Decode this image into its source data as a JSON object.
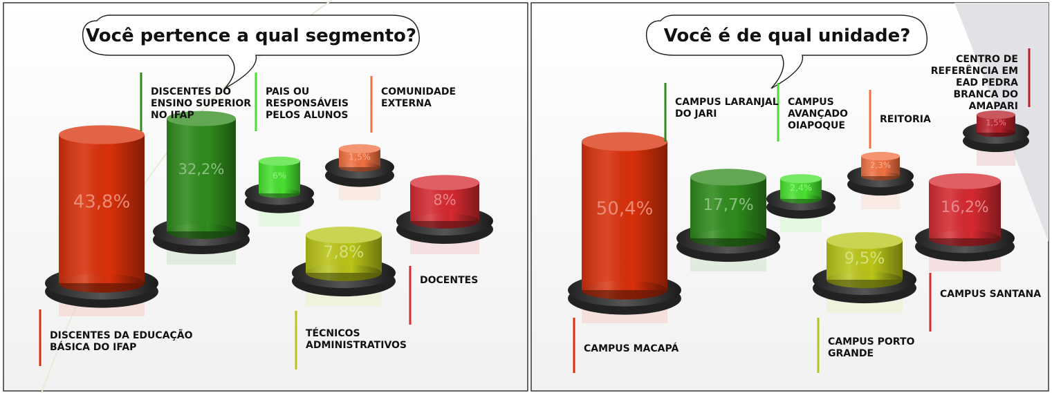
{
  "chart_data": [
    {
      "type": "bar",
      "title": "Você pertence a qual segmento?",
      "categories": [
        "DISCENTES DA EDUCAÇÃO BÁSICA DO IFAP",
        "DISCENTES DO ENSINO SUPERIOR NO IFAP",
        "PAIS OU RESPONSÁVEIS PELOS ALUNOS",
        "TÉCNICOS ADMINISTRATIVOS",
        "COMUNIDADE EXTERNA",
        "DOCENTES"
      ],
      "values": [
        43.8,
        32.2,
        6,
        7.8,
        1.5,
        8
      ],
      "value_labels": [
        "43,8%",
        "32,2%",
        "6%",
        "7,8%",
        "1,5%",
        "8%"
      ],
      "colors": [
        "#d8300a",
        "#2f8a1c",
        "#48e030",
        "#b9c418",
        "#f07040",
        "#d42a30"
      ]
    },
    {
      "type": "bar",
      "title": "Você é de qual unidade?",
      "categories": [
        "CAMPUS MACAPÁ",
        "CAMPUS LARANJAL DO JARI",
        "CAMPUS AVANÇADO OIAPOQUE",
        "CAMPUS PORTO GRANDE",
        "REITORIA",
        "CAMPUS SANTANA",
        "CENTRO DE REFERÊNCIA EM EAD PEDRA BRANCA DO AMAPARI"
      ],
      "values": [
        50.4,
        17.7,
        2.4,
        9.5,
        2.3,
        16.2,
        1.5
      ],
      "value_labels": [
        "50,4%",
        "17,7%",
        "2,4%",
        "9,5%",
        "2,3%",
        "16,2%",
        "1,5%"
      ],
      "colors": [
        "#d8300a",
        "#2f8a1c",
        "#48e030",
        "#b9c418",
        "#f07040",
        "#d42a30",
        "#b8202a"
      ]
    }
  ]
}
